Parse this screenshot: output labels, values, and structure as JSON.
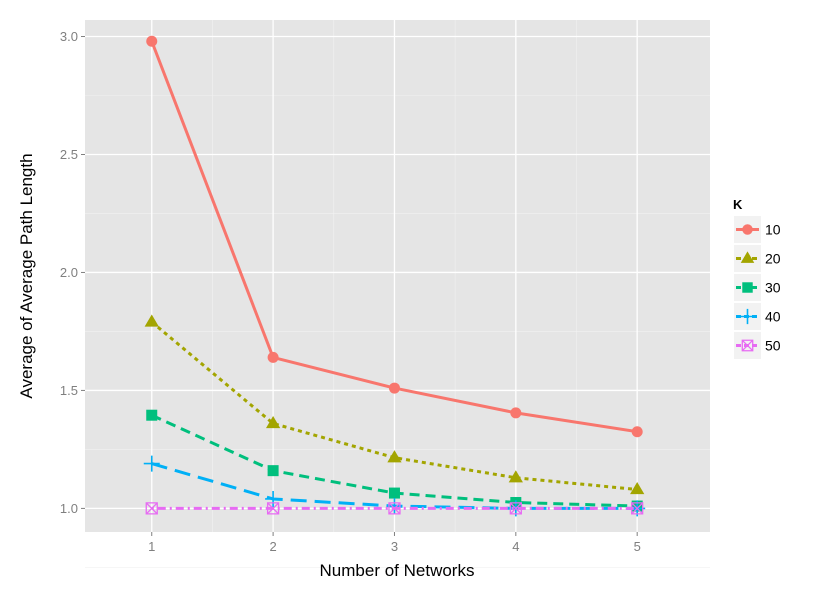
{
  "chart_data": {
    "type": "line",
    "xlabel": "Number of Networks",
    "ylabel": "Average of Average Path Length",
    "x": [
      1,
      2,
      3,
      4,
      5
    ],
    "x_ticks": [
      "1",
      "2",
      "3",
      "4",
      "5"
    ],
    "xlim": [
      0.45,
      5.6
    ],
    "ylim": [
      0.9,
      3.07
    ],
    "y_ticks": [
      "1.0",
      "1.5",
      "2.0",
      "2.5",
      "3.0"
    ],
    "y_tick_values": [
      1.0,
      1.5,
      2.0,
      2.5,
      3.0
    ],
    "grid": true,
    "legend_title": "K",
    "legend_position": "right",
    "series": [
      {
        "name": "10",
        "values": [
          2.98,
          1.64,
          1.51,
          1.405,
          1.325
        ],
        "color": "#F8766D",
        "marker": "circle",
        "dash": "solid"
      },
      {
        "name": "20",
        "values": [
          1.79,
          1.36,
          1.215,
          1.13,
          1.08
        ],
        "color": "#A3A500",
        "marker": "triangle",
        "dash": "dotted"
      },
      {
        "name": "30",
        "values": [
          1.395,
          1.16,
          1.065,
          1.025,
          1.01
        ],
        "color": "#00BF7D",
        "marker": "square",
        "dash": "dashed"
      },
      {
        "name": "40",
        "values": [
          1.19,
          1.04,
          1.01,
          1.0,
          1.0
        ],
        "color": "#00B0F6",
        "marker": "plus",
        "dash": "longdash"
      },
      {
        "name": "50",
        "values": [
          1.0,
          1.0,
          1.0,
          1.0,
          1.0
        ],
        "color": "#E76BF3",
        "marker": "square-x",
        "dash": "dotdash"
      }
    ]
  }
}
